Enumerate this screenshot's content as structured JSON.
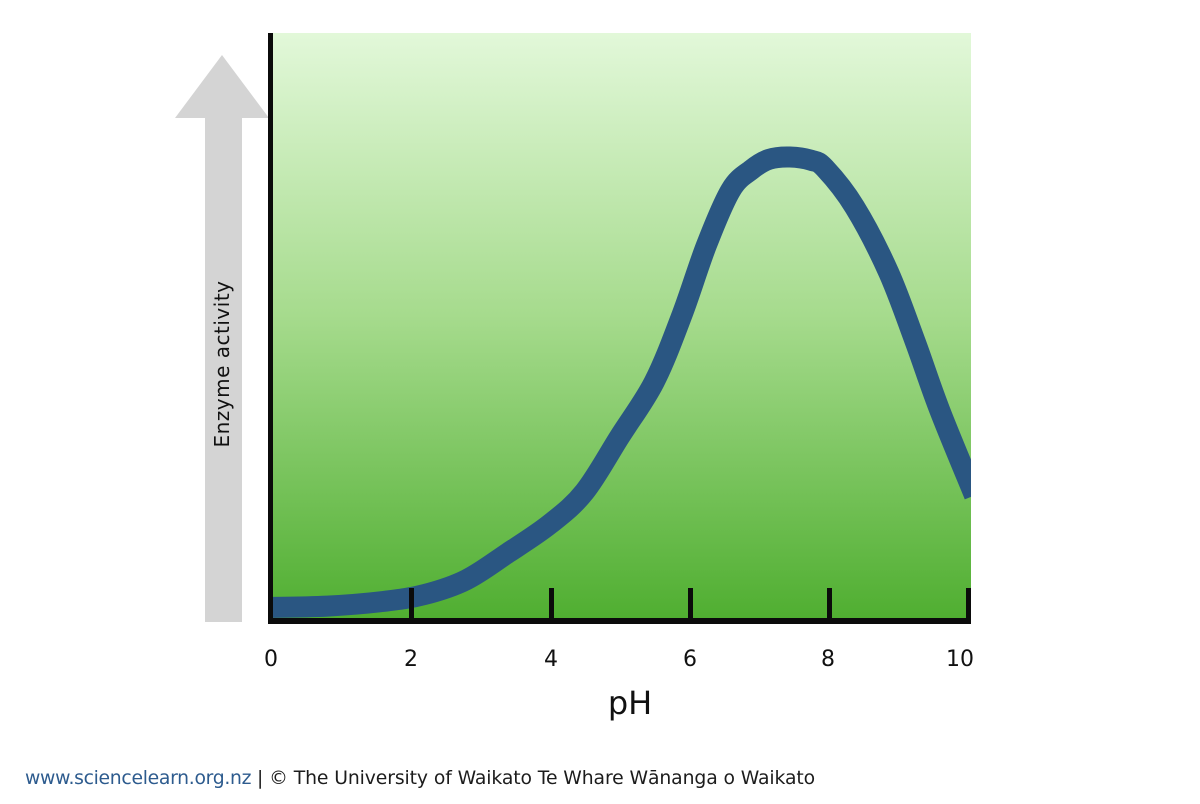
{
  "chart": {
    "y_axis_label": "Enzyme activity",
    "x_axis_label": "pH",
    "x_tick_labels": [
      "0",
      "2",
      "4",
      "6",
      "8",
      "10"
    ],
    "colors": {
      "curve": "#2a5682",
      "axis": "#0b0b0b",
      "arrow": "#d4d4d4",
      "gradient_top": "#e2f8d9",
      "gradient_bottom": "#4fae30"
    }
  },
  "chart_data": {
    "type": "line",
    "title": "",
    "xlabel": "pH",
    "ylabel": "Enzyme activity",
    "x_ticks": [
      0,
      2,
      4,
      6,
      8,
      10
    ],
    "xlim": [
      0,
      10
    ],
    "ylabel_note": "relative enzyme activity, unlabeled axis with upward arrow",
    "optimum_ph": 7.4,
    "legend": "none",
    "grid": "off",
    "series": [
      {
        "name": "Enzyme activity vs pH",
        "points": [
          {
            "ph": -0.1,
            "activity": 0.028
          },
          {
            "ph": 0.8,
            "activity": 0.031
          },
          {
            "ph": 1.6,
            "activity": 0.041
          },
          {
            "ph": 2.2,
            "activity": 0.056
          },
          {
            "ph": 2.8,
            "activity": 0.088
          },
          {
            "ph": 3.4,
            "activity": 0.146
          },
          {
            "ph": 4.0,
            "activity": 0.208
          },
          {
            "ph": 4.5,
            "activity": 0.278
          },
          {
            "ph": 5.0,
            "activity": 0.396
          },
          {
            "ph": 5.5,
            "activity": 0.515
          },
          {
            "ph": 5.9,
            "activity": 0.66
          },
          {
            "ph": 6.25,
            "activity": 0.81
          },
          {
            "ph": 6.6,
            "activity": 0.929
          },
          {
            "ph": 6.9,
            "activity": 0.973
          },
          {
            "ph": 7.15,
            "activity": 0.995
          },
          {
            "ph": 7.45,
            "activity": 1.0
          },
          {
            "ph": 7.75,
            "activity": 0.993
          },
          {
            "ph": 7.95,
            "activity": 0.976
          },
          {
            "ph": 8.38,
            "activity": 0.892
          },
          {
            "ph": 8.87,
            "activity": 0.75
          },
          {
            "ph": 9.25,
            "activity": 0.601
          },
          {
            "ph": 9.6,
            "activity": 0.454
          },
          {
            "ph": 10.1,
            "activity": 0.27
          }
        ]
      }
    ]
  },
  "footer": {
    "link": "www.sciencelearn.org.nz",
    "credit": " | © The University of Waikato Te Whare Wānanga o Waikato"
  }
}
